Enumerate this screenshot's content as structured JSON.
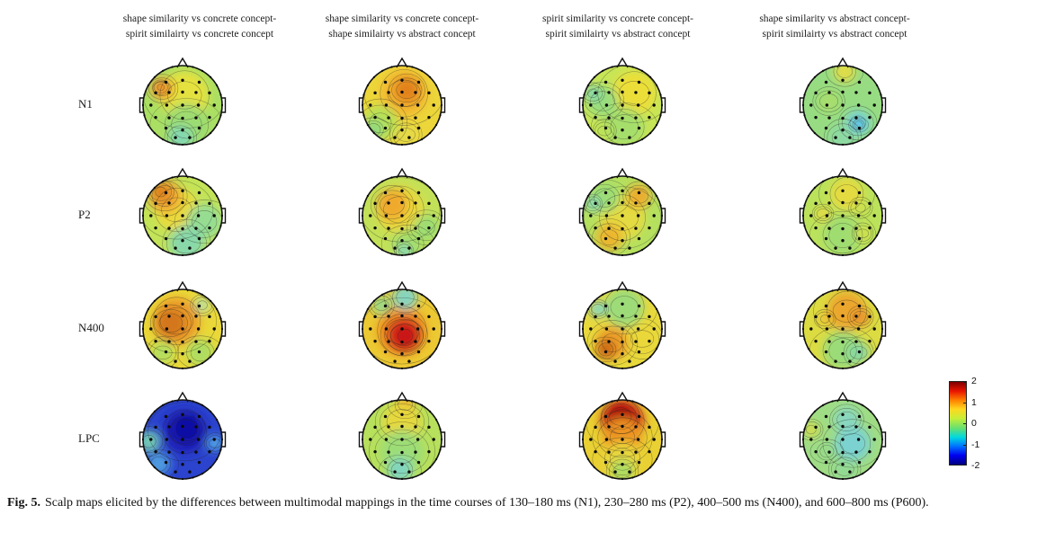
{
  "figure": {
    "caption_label": "Fig. 5.",
    "caption_text": "Scalp maps elicited by the differences between multimodal mappings in the time courses of 130–180 ms (N1), 230–280 ms (P2), 400–500 ms (N400), and 600–800 ms (P600)."
  },
  "columns": [
    {
      "line1": "shape similarity vs concrete concept-",
      "line2": "spirit similairty vs concrete concept"
    },
    {
      "line1": "shape similarity vs concrete concept-",
      "line2": "shape similairty vs abstract concept"
    },
    {
      "line1": "spirit similarity vs concrete concept-",
      "line2": "spirit similairty vs abstract concept"
    },
    {
      "line1": "shape similarity vs abstract concept-",
      "line2": "spirit similairty vs abstract concept"
    }
  ],
  "rows": [
    {
      "label": "N1"
    },
    {
      "label": "P2"
    },
    {
      "label": "N400"
    },
    {
      "label": "LPC"
    }
  ],
  "colorbar": {
    "min": -2,
    "max": 2,
    "ticks": [
      "2",
      "1",
      "0",
      "-1",
      "-2"
    ],
    "colormap": "jet",
    "gradient_stops_bottom_to_top": [
      "#00007f",
      "#0000f0",
      "#0070ff",
      "#00d8e0",
      "#66e070",
      "#c8ee38",
      "#ffd820",
      "#ff7f00",
      "#e81400",
      "#7f0000"
    ]
  },
  "maps": [
    {
      "row_label": "N1",
      "cells": [
        {
          "base": "#aadf63",
          "blobs": [
            [
              0.05,
              -0.25,
              0.62,
              "#e8e23c"
            ],
            [
              -0.52,
              -0.42,
              0.3,
              "#f0a433"
            ],
            [
              -0.55,
              -0.45,
              0.14,
              "#e2822a"
            ],
            [
              0.1,
              0.5,
              0.55,
              "#9bdb72"
            ],
            [
              -0.05,
              0.82,
              0.3,
              "#82d8b4"
            ]
          ]
        },
        {
          "base": "#ecd63a",
          "blobs": [
            [
              0.05,
              -0.3,
              0.6,
              "#f2b62e"
            ],
            [
              0.12,
              -0.38,
              0.34,
              "#e2801f"
            ],
            [
              -0.55,
              0.45,
              0.45,
              "#b4e159"
            ],
            [
              -0.72,
              0.62,
              0.25,
              "#8fd97e"
            ],
            [
              0.1,
              0.75,
              0.3,
              "#e5d94a"
            ]
          ]
        },
        {
          "base": "#c7e556",
          "blobs": [
            [
              0.3,
              -0.3,
              0.55,
              "#eede36"
            ],
            [
              -0.5,
              -0.1,
              0.4,
              "#97dc7d"
            ],
            [
              -0.75,
              -0.3,
              0.2,
              "#83d7b0"
            ],
            [
              0.05,
              0.55,
              0.5,
              "#a4de6d"
            ],
            [
              -0.45,
              0.65,
              0.22,
              "#b9e25a"
            ]
          ]
        },
        {
          "base": "#97dc82",
          "blobs": [
            [
              0.05,
              -0.85,
              0.28,
              "#e5dc44"
            ],
            [
              -0.35,
              -0.1,
              0.3,
              "#a8dd6b"
            ],
            [
              0.38,
              0.45,
              0.32,
              "#79d3d6"
            ],
            [
              0.4,
              0.5,
              0.15,
              "#4cb9ec"
            ],
            [
              0.0,
              0.82,
              0.35,
              "#8cd9a4"
            ]
          ]
        }
      ]
    },
    {
      "row_label": "P2",
      "cells": [
        {
          "base": "#c3e358",
          "blobs": [
            [
              -0.15,
              -0.15,
              0.55,
              "#ecd93a"
            ],
            [
              -0.45,
              -0.5,
              0.42,
              "#eea32f"
            ],
            [
              -0.55,
              -0.6,
              0.22,
              "#db7d1f"
            ],
            [
              0.55,
              0.15,
              0.45,
              "#93dc96"
            ],
            [
              0.1,
              0.7,
              0.45,
              "#86d8ad"
            ]
          ]
        },
        {
          "base": "#c3e158",
          "blobs": [
            [
              -0.05,
              -0.15,
              0.6,
              "#ecd73a"
            ],
            [
              -0.25,
              -0.28,
              0.4,
              "#efa82e"
            ],
            [
              0.62,
              0.3,
              0.33,
              "#9cdc74"
            ],
            [
              0.15,
              0.72,
              0.4,
              "#a4dd69"
            ],
            [
              0.05,
              0.9,
              0.18,
              "#85d7b9"
            ]
          ]
        },
        {
          "base": "#b5e05f",
          "blobs": [
            [
              0.0,
              0.05,
              0.58,
              "#e7da3e"
            ],
            [
              0.42,
              -0.5,
              0.3,
              "#eeaa2b"
            ],
            [
              -0.33,
              0.55,
              0.35,
              "#edb42c"
            ],
            [
              -0.45,
              -0.45,
              0.38,
              "#9cdc76"
            ],
            [
              -0.75,
              -0.3,
              0.18,
              "#86d8bd"
            ]
          ]
        },
        {
          "base": "#bbe25b",
          "blobs": [
            [
              0.1,
              -0.55,
              0.42,
              "#e7da3e"
            ],
            [
              -0.5,
              -0.05,
              0.2,
              "#e5da40"
            ],
            [
              0.45,
              -0.2,
              0.2,
              "#cfe14c"
            ],
            [
              0.0,
              0.5,
              0.5,
              "#9edc72"
            ],
            [
              0.5,
              0.45,
              0.2,
              "#d3e04a"
            ]
          ]
        }
      ]
    },
    {
      "row_label": "N400",
      "cells": [
        {
          "base": "#e9d838",
          "blobs": [
            [
              -0.15,
              -0.2,
              0.6,
              "#eb9a27"
            ],
            [
              -0.3,
              -0.15,
              0.38,
              "#d2751c"
            ],
            [
              0.5,
              -0.6,
              0.2,
              "#b7dfa0"
            ],
            [
              0.45,
              0.6,
              0.35,
              "#acdd62"
            ],
            [
              -0.5,
              0.6,
              0.3,
              "#b2de5f"
            ]
          ]
        },
        {
          "base": "#ecc933",
          "blobs": [
            [
              0.0,
              0.05,
              0.62,
              "#ee8d20"
            ],
            [
              0.05,
              0.15,
              0.44,
              "#d42a1c"
            ],
            [
              0.08,
              0.18,
              0.3,
              "#c81414"
            ],
            [
              0.08,
              -0.8,
              0.32,
              "#7fd5c6"
            ],
            [
              -0.52,
              -0.6,
              0.24,
              "#96da8b"
            ]
          ]
        },
        {
          "base": "#e8d93c",
          "blobs": [
            [
              0.05,
              -0.55,
              0.5,
              "#99db7c"
            ],
            [
              -0.62,
              -0.5,
              0.2,
              "#82d6c6"
            ],
            [
              -0.25,
              0.35,
              0.42,
              "#ec9c27"
            ],
            [
              -0.42,
              0.52,
              0.26,
              "#cb6a17"
            ],
            [
              0.5,
              0.25,
              0.38,
              "#ead73a"
            ]
          ]
        },
        {
          "base": "#dcdc42",
          "blobs": [
            [
              0.1,
              -0.45,
              0.5,
              "#eca42a"
            ],
            [
              0.45,
              -0.3,
              0.24,
              "#e8932a"
            ],
            [
              -0.45,
              -0.25,
              0.18,
              "#ecc232"
            ],
            [
              0.0,
              0.55,
              0.5,
              "#97db7b"
            ],
            [
              0.4,
              0.6,
              0.28,
              "#88d8a2"
            ]
          ]
        }
      ]
    },
    {
      "row_label": "LPC",
      "cells": [
        {
          "base": "#2b43cd",
          "blobs": [
            [
              0.05,
              -0.2,
              0.55,
              "#1a1cb4"
            ],
            [
              0.1,
              -0.28,
              0.35,
              "#0d0da4"
            ],
            [
              -0.85,
              0.05,
              0.28,
              "#76d2b2"
            ],
            [
              -0.6,
              0.62,
              0.3,
              "#4f9fe0"
            ],
            [
              0.82,
              0.1,
              0.2,
              "#55aee6"
            ]
          ]
        },
        {
          "base": "#b7e05c",
          "blobs": [
            [
              0.08,
              -0.88,
              0.26,
              "#ea9a29"
            ],
            [
              0.0,
              -0.45,
              0.5,
              "#e8d83c"
            ],
            [
              0.0,
              0.3,
              0.55,
              "#9cdc77"
            ],
            [
              -0.05,
              0.78,
              0.32,
              "#7fd5c2"
            ]
          ]
        },
        {
          "base": "#e9d033",
          "blobs": [
            [
              0.0,
              -0.45,
              0.55,
              "#d02218"
            ],
            [
              -0.05,
              -0.58,
              0.36,
              "#ae0f10"
            ],
            [
              0.0,
              -0.05,
              0.5,
              "#ee9a25"
            ],
            [
              0.0,
              0.5,
              0.45,
              "#e8d83c"
            ],
            [
              0.0,
              0.8,
              0.3,
              "#abdc62"
            ]
          ]
        },
        {
          "base": "#9fdc85",
          "blobs": [
            [
              0.25,
              0.1,
              0.45,
              "#79d2d4"
            ],
            [
              0.1,
              -0.5,
              0.32,
              "#88d7c2"
            ],
            [
              -0.8,
              -0.25,
              0.2,
              "#d5dc49"
            ],
            [
              -0.4,
              0.3,
              0.25,
              "#97da8a"
            ],
            [
              0.05,
              0.75,
              0.3,
              "#92d995"
            ]
          ]
        }
      ]
    }
  ]
}
